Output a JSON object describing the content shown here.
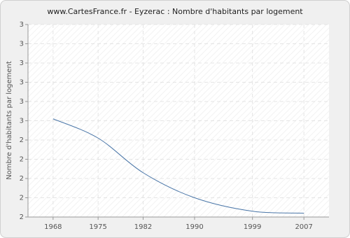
{
  "chart_data": {
    "type": "line",
    "title": "www.CartesFrance.fr - Eyzerac : Nombre d'habitants par logement",
    "y_label": "Nombre d'habitants par logement",
    "x": [
      1968,
      1975,
      1982,
      1990,
      1999,
      2007
    ],
    "series": [
      {
        "name": "Eyzerac",
        "color": "#4a76a8",
        "values": [
          2.51,
          2.41,
          2.23,
          2.1,
          2.03,
          2.02
        ]
      }
    ],
    "xlim": [
      1964.1,
      2010.9
    ],
    "xticks": [
      1968,
      1975,
      1982,
      1990,
      1999,
      2007
    ],
    "ylim": [
      2.0,
      3.0
    ],
    "yticks": [
      {
        "value": 2.0,
        "label": "2"
      },
      {
        "value": 2.1,
        "label": "2"
      },
      {
        "value": 2.2,
        "label": "2"
      },
      {
        "value": 2.3,
        "label": "2"
      },
      {
        "value": 2.4,
        "label": "2"
      },
      {
        "value": 2.5,
        "label": "3"
      },
      {
        "value": 2.6,
        "label": "3"
      },
      {
        "value": 2.7,
        "label": "3"
      },
      {
        "value": 2.8,
        "label": "3"
      },
      {
        "value": 2.9,
        "label": "3"
      },
      {
        "value": 3.0,
        "label": "3"
      }
    ],
    "grid": true
  }
}
